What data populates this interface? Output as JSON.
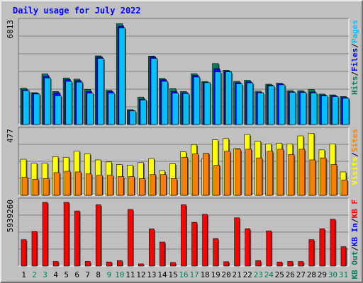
{
  "chart_data": {
    "type": "bar",
    "title": "Daily usage for July 2022",
    "days": [
      "1",
      "2",
      "3",
      "4",
      "5",
      "6",
      "7",
      "8",
      "9",
      "10",
      "11",
      "12",
      "13",
      "14",
      "15",
      "16",
      "17",
      "18",
      "19",
      "20",
      "21",
      "22",
      "23",
      "24",
      "25",
      "26",
      "27",
      "28",
      "29",
      "30",
      "31"
    ],
    "weekend_days": [
      "2",
      "3",
      "9",
      "10",
      "16",
      "17",
      "23",
      "24",
      "30",
      "31"
    ],
    "colors": {
      "title": "#0000ff",
      "hits": "#00805c",
      "files": "#0000ff",
      "pages": "#00c0ff",
      "visits": "#ffff00",
      "sites": "#ff8000",
      "kb_f": "#ff0000",
      "kb_in": "#0000ff",
      "kb_out": "#00805c",
      "weekday_label": "#000000",
      "weekend_label": "#00805c"
    },
    "panels": [
      {
        "id": "hits_files_pages",
        "max_label": "6013",
        "max": 6013,
        "legend": [
          {
            "text": "Hits",
            "color_key": "hits"
          },
          {
            "text": "/",
            "color_key": "weekday_label"
          },
          {
            "text": "Files",
            "color_key": "files"
          },
          {
            "text": "/",
            "color_key": "weekday_label"
          },
          {
            "text": "Pages",
            "color_key": "pages"
          }
        ],
        "series": [
          {
            "name": "Hits",
            "color_key": "hits",
            "values": [
              2150,
              1880,
              2990,
              1950,
              2750,
              2680,
              2070,
              4050,
              2020,
              5950,
              880,
              1620,
              4040,
              2720,
              2120,
              1950,
              3000,
              2540,
              3600,
              3200,
              2550,
              2610,
              1970,
              2380,
              2440,
              2000,
              2000,
              2060,
              1800,
              1750,
              1650
            ]
          },
          {
            "name": "Files",
            "color_key": "files",
            "values": [
              2050,
              1850,
              2850,
              1880,
              2650,
              2600,
              1950,
              4000,
              1950,
              5800,
              830,
              1500,
              4000,
              2650,
              1950,
              1880,
              2900,
              2480,
              3300,
              3150,
              2470,
              2520,
              1900,
              2330,
              2390,
              1940,
              1930,
              1920,
              1740,
              1700,
              1600
            ]
          },
          {
            "name": "Pages",
            "color_key": "pages",
            "values": [
              2000,
              1800,
              2750,
              1700,
              2550,
              2500,
              1850,
              3900,
              1850,
              5700,
              800,
              1450,
              3900,
              2550,
              1850,
              1830,
              2800,
              2470,
              3100,
              3100,
              2400,
              2460,
              1870,
              2280,
              2340,
              1900,
              1890,
              1860,
              1690,
              1650,
              1550
            ]
          }
        ]
      },
      {
        "id": "visits_sites",
        "max_label": "477",
        "max": 477,
        "legend": [
          {
            "text": "Visits",
            "color_key": "visits"
          },
          {
            "text": "/",
            "color_key": "weekday_label"
          },
          {
            "text": "Sites",
            "color_key": "sites"
          }
        ],
        "series": [
          {
            "name": "Visits",
            "color_key": "visits",
            "values": [
              270,
              240,
              240,
              290,
              285,
              330,
              310,
              265,
              250,
              230,
              225,
              245,
              275,
              185,
              235,
              325,
              380,
              275,
              415,
              425,
              350,
              455,
              405,
              385,
              390,
              385,
              445,
              465,
              340,
              385,
              175
            ]
          },
          {
            "name": "Sites",
            "color_key": "sites",
            "values": [
              135,
              120,
              125,
              170,
              180,
              175,
              160,
              150,
              150,
              140,
              140,
              125,
              155,
              155,
              125,
              285,
              310,
              315,
              225,
              330,
              345,
              345,
              280,
              330,
              345,
              305,
              345,
              265,
              280,
              230,
              115
            ]
          }
        ]
      },
      {
        "id": "kbytes",
        "max_label": "5939260",
        "max": 5939260,
        "legend": [
          {
            "text": "KB Out",
            "color_key": "kb_out"
          },
          {
            "text": "/",
            "color_key": "weekday_label"
          },
          {
            "text": "KB In",
            "color_key": "kb_in"
          },
          {
            "text": "/",
            "color_key": "weekday_label"
          },
          {
            "text": "KB F",
            "color_key": "kb_f"
          }
        ],
        "series": [
          {
            "name": "KB F",
            "color_key": "kb_f",
            "values": [
              2460000,
              3220000,
              5939260,
              430000,
              5940000,
              5140000,
              430000,
              5720000,
              380000,
              500000,
              5280000,
              200000,
              3460000,
              2240000,
              330000,
              5720000,
              4080000,
              4820000,
              2560000,
              400000,
              4500000,
              3480000,
              500000,
              3280000,
              380000,
              430000,
              420000,
              2460000,
              3480000,
              4360000,
              1800000
            ]
          }
        ]
      }
    ],
    "x_ticks": [
      "1",
      "2",
      "3",
      "4",
      "5",
      "6",
      "7",
      "8",
      "9",
      "10",
      "11",
      "12",
      "13",
      "14",
      "15",
      "16",
      "17",
      "18",
      "19",
      "20",
      "21",
      "22",
      "23",
      "24",
      "25",
      "26",
      "27",
      "28",
      "29",
      "30",
      "31"
    ]
  }
}
